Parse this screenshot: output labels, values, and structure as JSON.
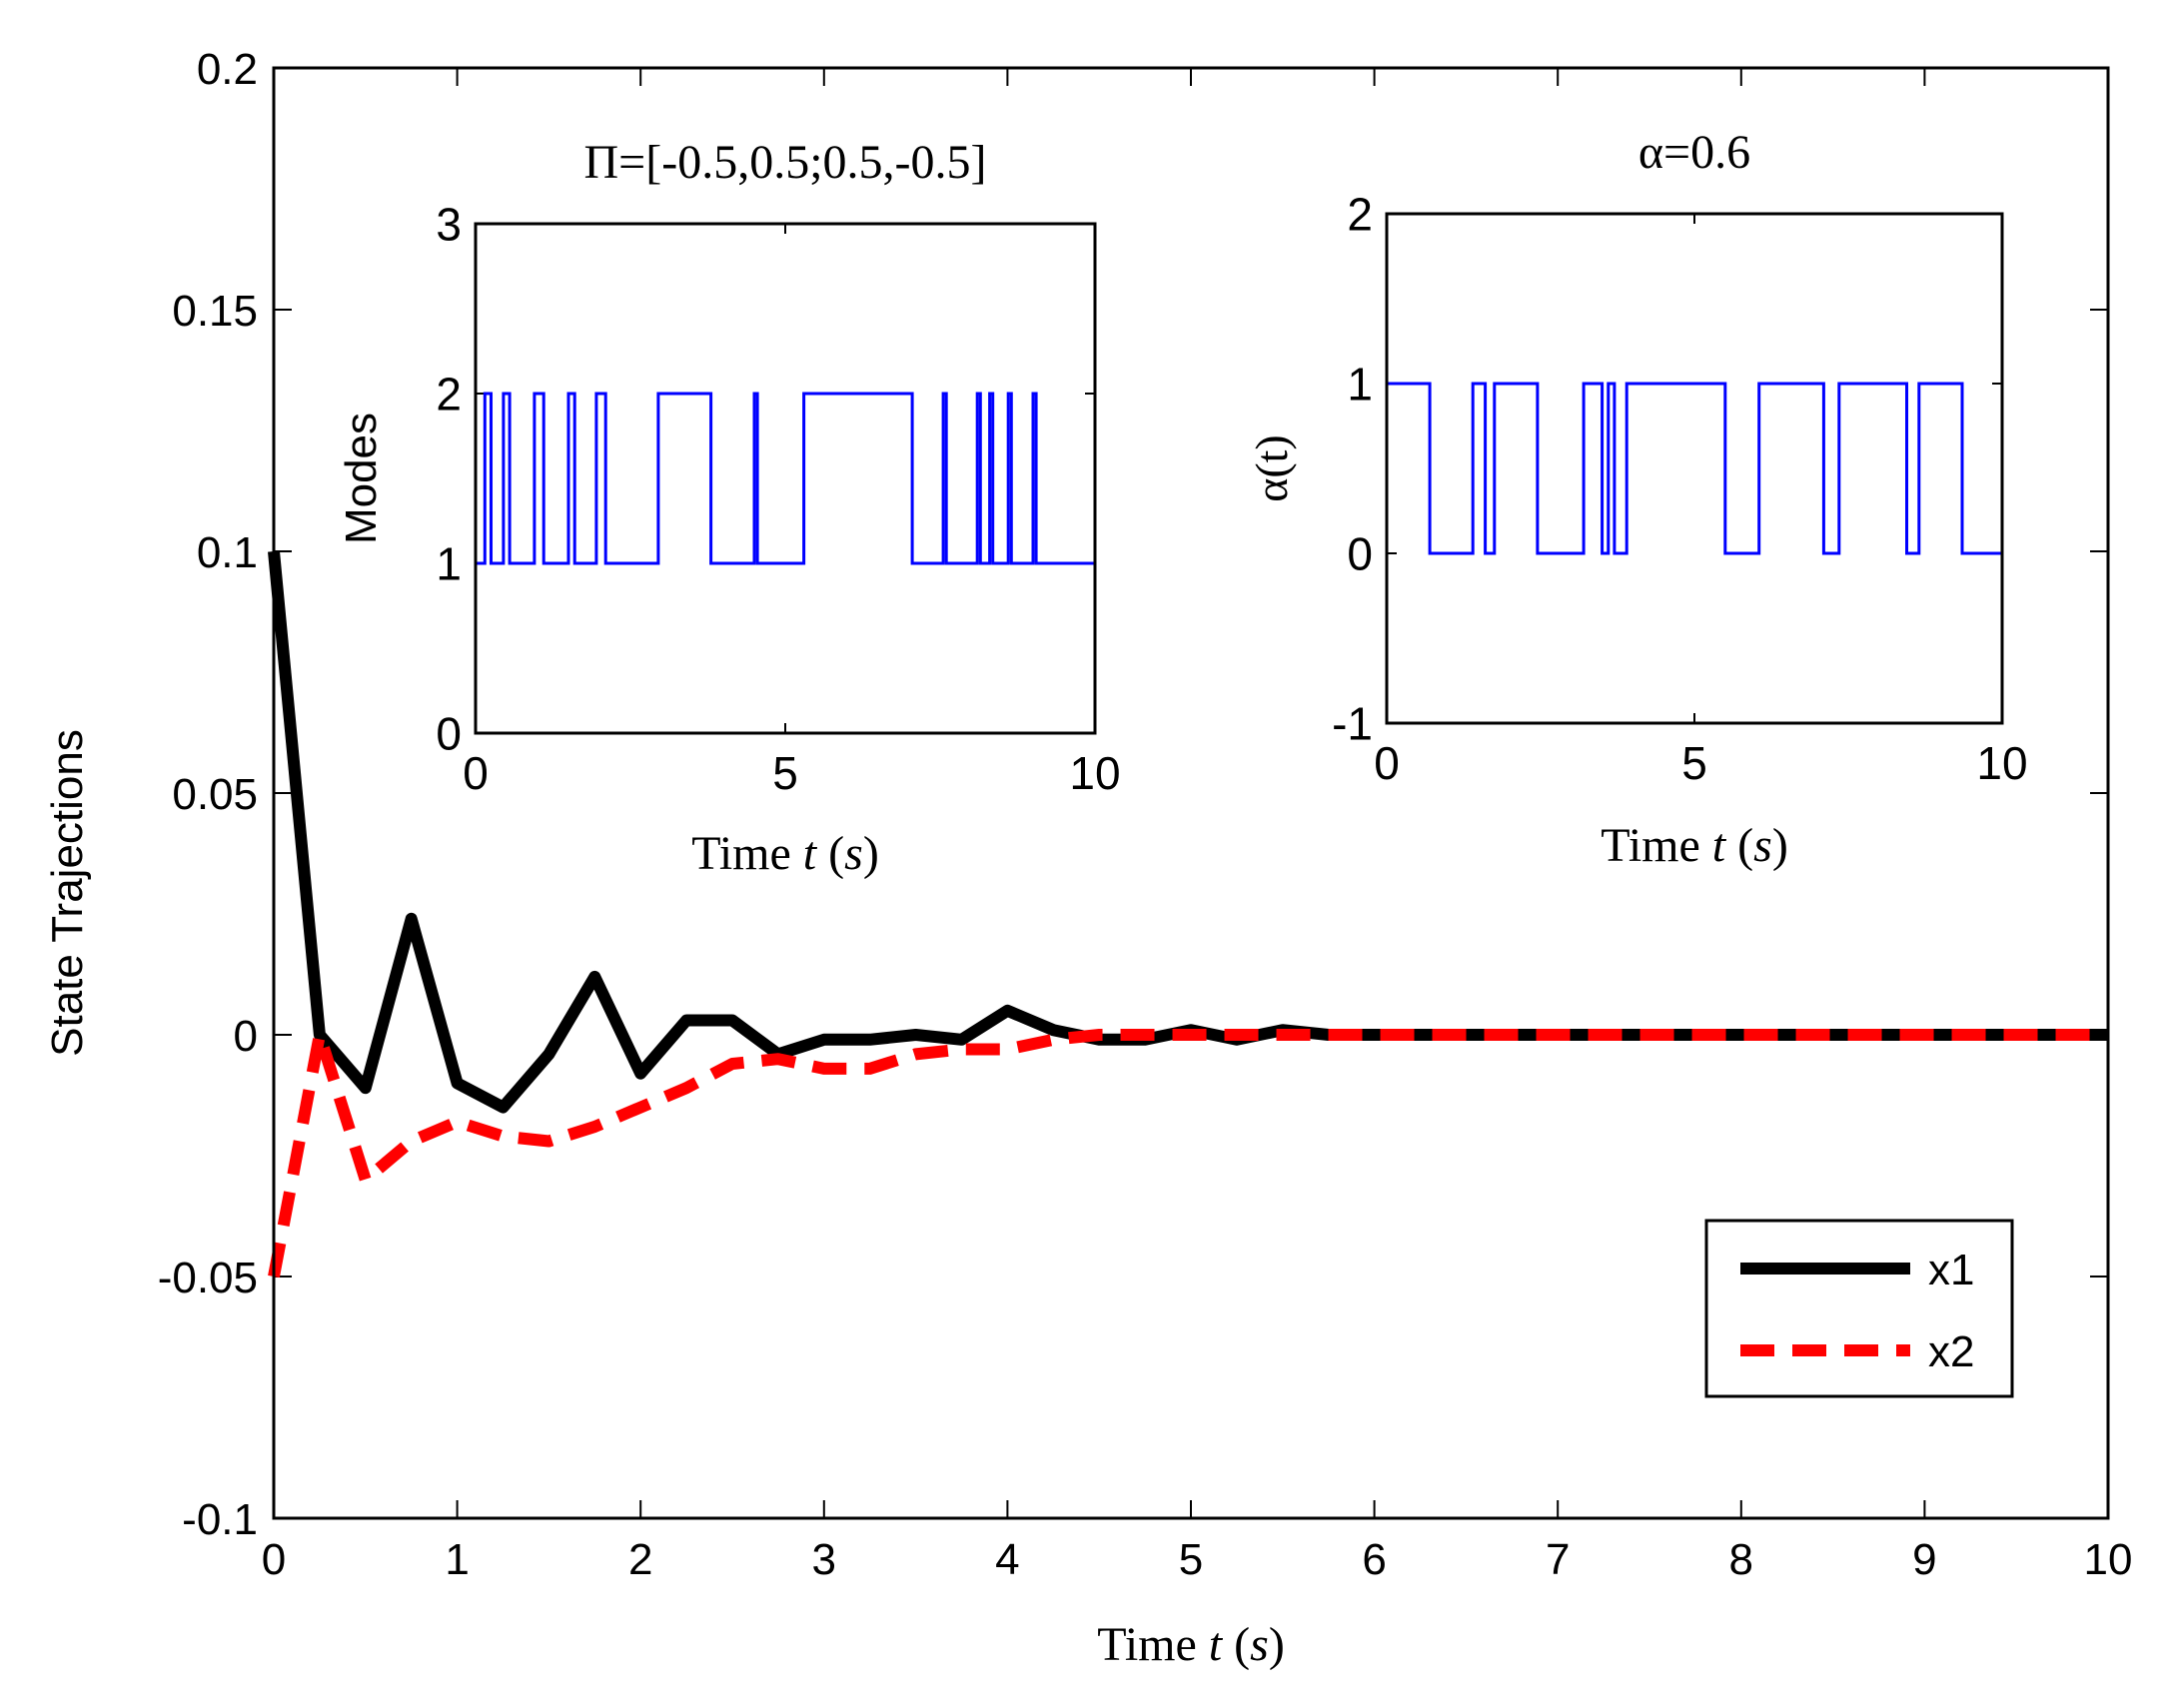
{
  "chart_data": [
    {
      "id": "main",
      "type": "line",
      "title": "",
      "xlabel": "Time t (s)",
      "ylabel": "State Trajections",
      "xlim": [
        0,
        10
      ],
      "ylim": [
        -0.1,
        0.2
      ],
      "xticks": [
        "0",
        "1",
        "2",
        "3",
        "4",
        "5",
        "6",
        "7",
        "8",
        "9",
        "10"
      ],
      "yticks": [
        "-0.1",
        "-0.05",
        "0",
        "0.05",
        "0.1",
        "0.15",
        "0.2"
      ],
      "legend": {
        "position": "bottom-right",
        "entries": [
          "x1",
          "x2"
        ]
      },
      "series": [
        {
          "name": "x1",
          "color": "#000000",
          "style": "solid",
          "x": [
            0,
            0.25,
            0.5,
            0.75,
            1.0,
            1.25,
            1.5,
            1.75,
            2.0,
            2.25,
            2.5,
            2.75,
            3.0,
            3.25,
            3.5,
            3.75,
            4.0,
            4.25,
            4.5,
            4.75,
            5.0,
            5.25,
            5.5,
            5.75,
            6.0,
            6.5,
            7.0,
            8.0,
            9.0,
            10.0
          ],
          "y": [
            0.1,
            0.0,
            -0.011,
            0.024,
            -0.01,
            -0.015,
            -0.004,
            0.012,
            -0.008,
            0.003,
            0.003,
            -0.004,
            -0.001,
            -0.001,
            0.0,
            -0.001,
            0.005,
            0.001,
            -0.001,
            -0.001,
            0.001,
            -0.001,
            0.001,
            0.0,
            0.0,
            0.0,
            0.0,
            0.0,
            0.0,
            0.0
          ]
        },
        {
          "name": "x2",
          "color": "#ff0000",
          "style": "dashed",
          "x": [
            0,
            0.25,
            0.5,
            0.75,
            1.0,
            1.25,
            1.5,
            1.75,
            2.0,
            2.25,
            2.5,
            2.75,
            3.0,
            3.25,
            3.5,
            3.75,
            4.0,
            4.25,
            4.5,
            5.0,
            5.5,
            6.0,
            7.0,
            8.0,
            9.0,
            10.0
          ],
          "y": [
            -0.05,
            0.0,
            -0.03,
            -0.022,
            -0.018,
            -0.021,
            -0.022,
            -0.019,
            -0.015,
            -0.011,
            -0.006,
            -0.005,
            -0.007,
            -0.007,
            -0.004,
            -0.003,
            -0.003,
            -0.001,
            0.0,
            0.0,
            0.0,
            0.0,
            0.0,
            0.0,
            0.0,
            0.0
          ]
        }
      ]
    },
    {
      "id": "inset-modes",
      "type": "line",
      "step": true,
      "title": "Π=[-0.5,0.5;0.5,-0.5]",
      "xlabel": "Time t (s)",
      "ylabel": "Modes",
      "xlim": [
        0,
        10
      ],
      "ylim": [
        0,
        3
      ],
      "xticks": [
        "0",
        "5",
        "10"
      ],
      "yticks": [
        "0",
        "1",
        "2",
        "3"
      ],
      "series": [
        {
          "name": "modes",
          "color": "#0000ff",
          "x": [
            0,
            0.15,
            0.25,
            0.45,
            0.55,
            0.95,
            1.1,
            1.5,
            1.6,
            1.95,
            2.1,
            2.95,
            3.0,
            3.75,
            3.8,
            4.5,
            4.55,
            5.3,
            5.35,
            7.0,
            7.05,
            7.55,
            7.6,
            8.1,
            8.15,
            8.3,
            8.35,
            8.6,
            8.65,
            9.0,
            9.05,
            10.0
          ],
          "y": [
            1,
            2,
            1,
            2,
            1,
            2,
            1,
            2,
            1,
            2,
            1,
            2,
            2,
            2,
            1,
            2,
            1,
            2,
            2,
            2,
            1,
            2,
            1,
            2,
            1,
            2,
            1,
            2,
            1,
            2,
            1,
            2
          ]
        }
      ]
    },
    {
      "id": "inset-alpha",
      "type": "line",
      "step": true,
      "title": "α=0.6",
      "xlabel": "Time t (s)",
      "ylabel": "α(t)",
      "xlim": [
        0,
        10
      ],
      "ylim": [
        -1,
        2
      ],
      "xticks": [
        "0",
        "5",
        "10"
      ],
      "yticks": [
        "-1",
        "0",
        "1",
        "2"
      ],
      "series": [
        {
          "name": "alpha",
          "color": "#0000ff",
          "x": [
            0,
            0.7,
            1.4,
            1.6,
            1.75,
            2.45,
            3.2,
            3.5,
            3.6,
            3.7,
            3.9,
            4.75,
            5.5,
            6.05,
            6.75,
            7.1,
            7.35,
            7.95,
            8.45,
            8.65,
            9.05,
            9.35,
            10.0
          ],
          "y": [
            1,
            0,
            1,
            0,
            1,
            0,
            1,
            0,
            1,
            0,
            1,
            1,
            0,
            1,
            1,
            0,
            1,
            1,
            0,
            1,
            1,
            0,
            1
          ]
        }
      ]
    }
  ]
}
